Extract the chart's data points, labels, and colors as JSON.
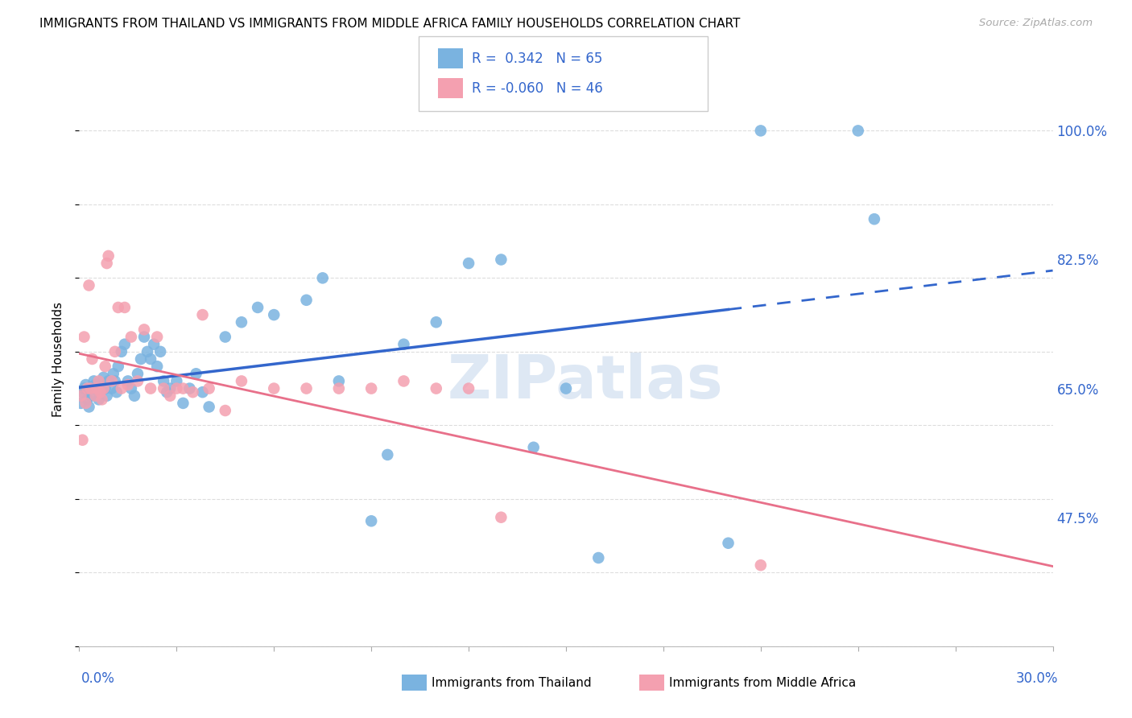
{
  "title": "IMMIGRANTS FROM THAILAND VS IMMIGRANTS FROM MIDDLE AFRICA FAMILY HOUSEHOLDS CORRELATION CHART",
  "source": "Source: ZipAtlas.com",
  "ylabel": "Family Households",
  "ylabel_right_ticks": [
    47.5,
    65.0,
    82.5,
    100.0
  ],
  "xmin": 0.0,
  "xmax": 30.0,
  "ymin": 30.0,
  "ymax": 108.0,
  "r_thailand": 0.342,
  "n_thailand": 65,
  "r_middle_africa": -0.06,
  "n_middle_africa": 46,
  "color_thailand": "#7ab3e0",
  "color_middle_africa": "#f4a0b0",
  "trend_color_thailand": "#3366cc",
  "trend_color_middle_africa": "#e8708a",
  "watermark": "ZIPatlas",
  "thailand_x": [
    0.05,
    0.1,
    0.15,
    0.2,
    0.25,
    0.3,
    0.35,
    0.4,
    0.45,
    0.5,
    0.55,
    0.6,
    0.65,
    0.7,
    0.75,
    0.8,
    0.85,
    0.9,
    1.0,
    1.05,
    1.1,
    1.15,
    1.2,
    1.3,
    1.4,
    1.5,
    1.6,
    1.7,
    1.8,
    1.9,
    2.0,
    2.1,
    2.2,
    2.3,
    2.4,
    2.5,
    2.6,
    2.7,
    2.8,
    3.0,
    3.2,
    3.4,
    3.6,
    3.8,
    4.0,
    4.5,
    5.0,
    5.5,
    6.0,
    7.0,
    7.5,
    8.0,
    9.0,
    9.5,
    10.0,
    11.0,
    12.0,
    13.0,
    14.0,
    15.0,
    16.0,
    20.0,
    21.0,
    24.0,
    24.5
  ],
  "thailand_y": [
    63.0,
    64.5,
    65.0,
    65.5,
    63.5,
    62.5,
    64.0,
    65.0,
    66.0,
    65.5,
    65.0,
    63.5,
    64.5,
    65.0,
    66.5,
    65.0,
    64.0,
    66.0,
    65.0,
    67.0,
    66.0,
    64.5,
    68.0,
    70.0,
    71.0,
    66.0,
    65.0,
    64.0,
    67.0,
    69.0,
    72.0,
    70.0,
    69.0,
    71.0,
    68.0,
    70.0,
    66.0,
    64.5,
    65.0,
    66.0,
    63.0,
    65.0,
    67.0,
    64.5,
    62.5,
    72.0,
    74.0,
    76.0,
    75.0,
    77.0,
    80.0,
    66.0,
    47.0,
    56.0,
    71.0,
    74.0,
    82.0,
    82.5,
    57.0,
    65.0,
    42.0,
    44.0,
    100.0,
    100.0,
    88.0
  ],
  "middle_africa_x": [
    0.05,
    0.1,
    0.15,
    0.2,
    0.25,
    0.3,
    0.35,
    0.4,
    0.5,
    0.55,
    0.6,
    0.65,
    0.7,
    0.75,
    0.8,
    0.85,
    0.9,
    1.0,
    1.1,
    1.2,
    1.3,
    1.4,
    1.5,
    1.6,
    1.8,
    2.0,
    2.2,
    2.4,
    2.6,
    2.8,
    3.0,
    3.2,
    3.5,
    3.8,
    4.0,
    4.5,
    5.0,
    6.0,
    7.0,
    8.0,
    9.0,
    10.0,
    11.0,
    12.0,
    13.0,
    21.0
  ],
  "middle_africa_y": [
    64.0,
    58.0,
    72.0,
    63.0,
    65.0,
    79.0,
    65.0,
    69.0,
    64.0,
    65.0,
    66.0,
    64.5,
    63.5,
    65.0,
    68.0,
    82.0,
    83.0,
    66.0,
    70.0,
    76.0,
    65.0,
    76.0,
    65.5,
    72.0,
    66.0,
    73.0,
    65.0,
    72.0,
    65.0,
    64.0,
    65.0,
    65.0,
    64.5,
    75.0,
    65.0,
    62.0,
    66.0,
    65.0,
    65.0,
    65.0,
    65.0,
    66.0,
    65.0,
    65.0,
    47.5,
    41.0
  ]
}
